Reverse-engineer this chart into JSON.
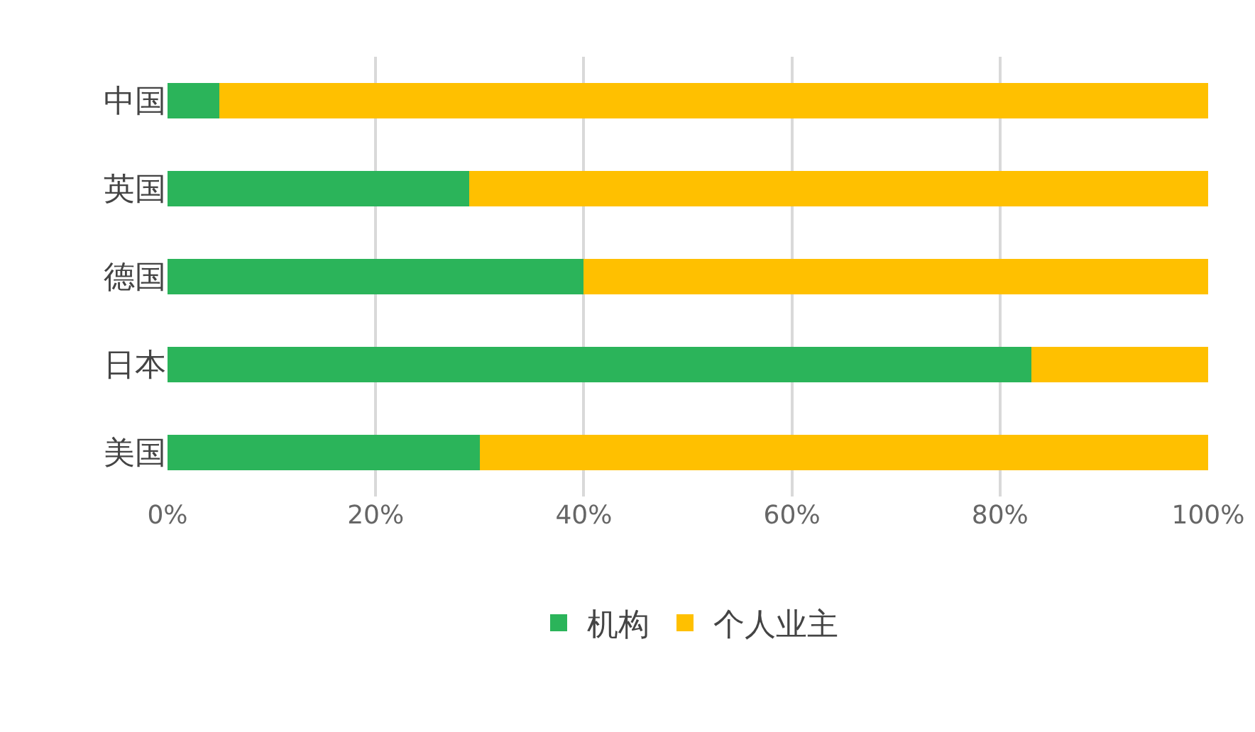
{
  "chart_data": {
    "type": "bar",
    "orientation": "horizontal",
    "stacked": true,
    "categories": [
      "中国",
      "英国",
      "德国",
      "日本",
      "美国"
    ],
    "series": [
      {
        "name": "机构",
        "color": "#2bb45a",
        "values": [
          5,
          29,
          40,
          83,
          30
        ]
      },
      {
        "name": "个人业主",
        "color": "#ffc000",
        "values": [
          95,
          71,
          60,
          17,
          70
        ]
      }
    ],
    "xlim": [
      0,
      100
    ],
    "xticks": [
      {
        "value": 0,
        "label": "0%"
      },
      {
        "value": 20,
        "label": "20%"
      },
      {
        "value": 40,
        "label": "40%"
      },
      {
        "value": 60,
        "label": "60%"
      },
      {
        "value": 80,
        "label": "80%"
      },
      {
        "value": 100,
        "label": "100%"
      }
    ],
    "grid": "x",
    "legend": "bottom"
  }
}
